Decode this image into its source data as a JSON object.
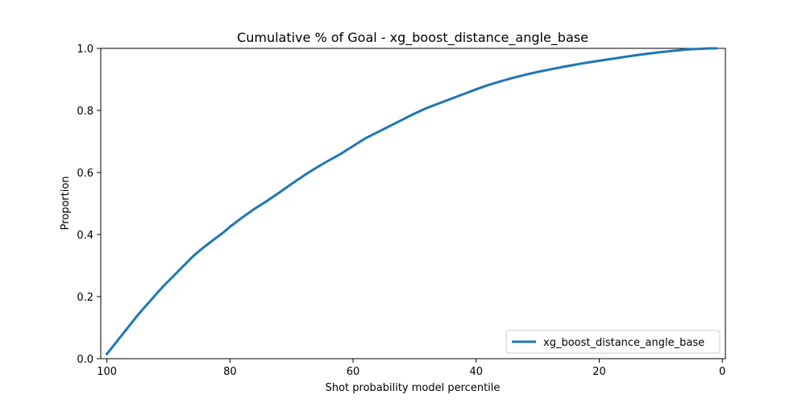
{
  "chart_data": {
    "type": "line",
    "title": "Cumulative % of Goal - xg_boost_distance_angle_base",
    "xlabel": "Shot probability model percentile",
    "ylabel": "Proportion",
    "xlim": [
      101,
      -0.5
    ],
    "ylim": [
      0,
      1
    ],
    "x_reversed": true,
    "x_ticks": [
      100,
      80,
      60,
      40,
      20,
      0
    ],
    "y_ticks": [
      0.0,
      0.2,
      0.4,
      0.6,
      0.8,
      1.0
    ],
    "x_tick_labels": [
      "100",
      "80",
      "60",
      "40",
      "20",
      "0"
    ],
    "y_tick_labels": [
      "0.0",
      "0.2",
      "0.4",
      "0.6",
      "0.8",
      "1.0"
    ],
    "grid": false,
    "legend": {
      "placement": "lower-right"
    },
    "series": [
      {
        "name": "xg_boost_distance_angle_base",
        "color": "#1f77b4",
        "x": [
          100,
          99,
          98,
          97,
          96,
          95,
          94,
          93,
          92,
          91,
          90,
          89,
          88,
          87,
          86,
          85,
          84,
          83,
          82,
          81,
          80,
          78,
          76,
          74,
          72,
          70,
          68,
          66,
          64,
          62,
          60,
          58,
          56,
          54,
          52,
          50,
          48,
          46,
          44,
          42,
          40,
          38,
          36,
          34,
          32,
          30,
          28,
          26,
          24,
          22,
          20,
          18,
          16,
          14,
          12,
          10,
          8,
          6,
          4,
          2,
          1
        ],
        "y": [
          0.015,
          0.04,
          0.065,
          0.09,
          0.115,
          0.14,
          0.163,
          0.185,
          0.208,
          0.23,
          0.25,
          0.27,
          0.29,
          0.31,
          0.33,
          0.347,
          0.363,
          0.378,
          0.393,
          0.408,
          0.425,
          0.455,
          0.483,
          0.508,
          0.535,
          0.563,
          0.59,
          0.615,
          0.638,
          0.66,
          0.685,
          0.71,
          0.73,
          0.75,
          0.77,
          0.79,
          0.808,
          0.823,
          0.838,
          0.853,
          0.868,
          0.882,
          0.894,
          0.905,
          0.915,
          0.924,
          0.932,
          0.94,
          0.947,
          0.954,
          0.96,
          0.966,
          0.972,
          0.978,
          0.983,
          0.988,
          0.992,
          0.996,
          0.998,
          1.0,
          1.0
        ]
      }
    ]
  }
}
